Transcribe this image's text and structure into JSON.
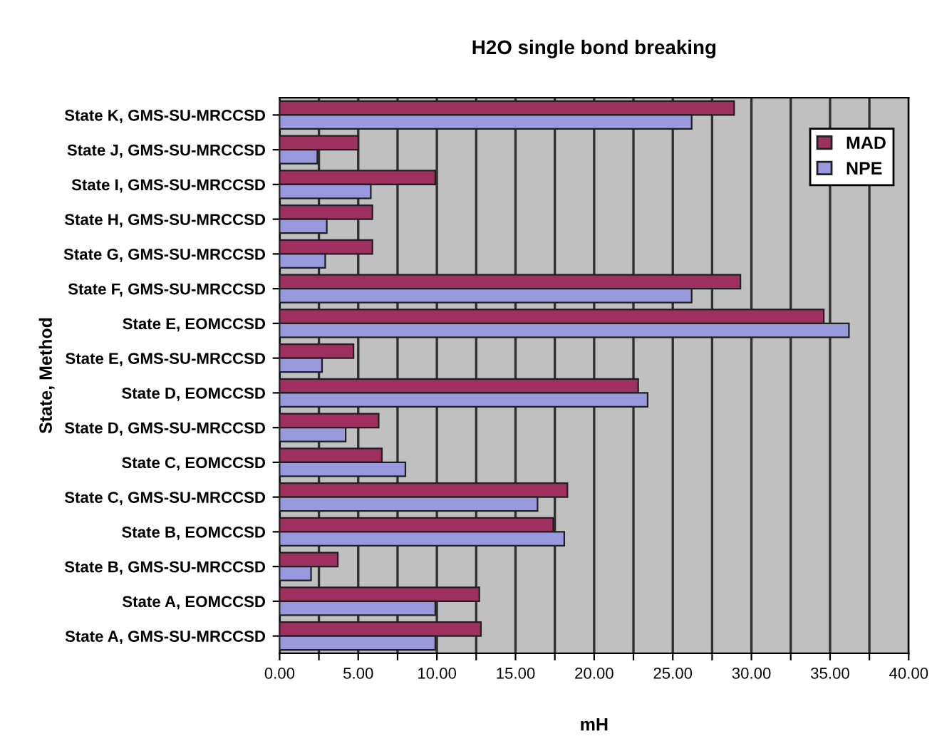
{
  "chart_data": {
    "type": "bar",
    "orientation": "horizontal",
    "title": "H2O single bond breaking",
    "xlabel": "mH",
    "ylabel": "State, Method",
    "categories": [
      "State K, GMS-SU-MRCCSD",
      "State J, GMS-SU-MRCCSD",
      "State I, GMS-SU-MRCCSD",
      "State H, GMS-SU-MRCCSD",
      "State G, GMS-SU-MRCCSD",
      "State F, GMS-SU-MRCCSD",
      "State E, EOMCCSD",
      "State E, GMS-SU-MRCCSD",
      "State D, EOMCCSD",
      "State D, GMS-SU-MRCCSD",
      "State C, EOMCCSD",
      "State C, GMS-SU-MRCCSD",
      "State B, EOMCCSD",
      "State B, GMS-SU-MRCCSD",
      "State A, EOMCCSD",
      "State A, GMS-SU-MRCCSD"
    ],
    "series": [
      {
        "name": "MAD",
        "color": "#9e3060",
        "values": [
          28.9,
          5.0,
          9.9,
          5.9,
          5.9,
          29.3,
          34.6,
          4.7,
          22.8,
          6.3,
          6.5,
          18.3,
          17.4,
          3.7,
          12.7,
          12.8
        ]
      },
      {
        "name": "NPE",
        "color": "#9999dd",
        "values": [
          26.2,
          2.4,
          5.8,
          3.0,
          2.9,
          26.2,
          36.2,
          2.7,
          23.4,
          4.2,
          8.0,
          16.4,
          18.1,
          2.0,
          9.9,
          9.9
        ]
      }
    ],
    "xlim": [
      0,
      40
    ],
    "xticks": [
      "0.00",
      {
        "value": 2.5,
        "label": null
      },
      {
        "value": 5,
        "label": "5.00"
      },
      {
        "value": 7.5,
        "label": null
      },
      {
        "value": 10,
        "label": "10.00"
      },
      {
        "value": 12.5,
        "label": null
      },
      {
        "value": 15,
        "label": "15.00"
      },
      {
        "value": 17.5,
        "label": null
      },
      {
        "value": 20,
        "label": "20.00"
      },
      {
        "value": 22.5,
        "label": null
      },
      {
        "value": 25,
        "label": "25.00"
      },
      {
        "value": 27.5,
        "label": null
      },
      {
        "value": 30,
        "label": "30.00"
      },
      {
        "value": 32.5,
        "label": null
      },
      {
        "value": 35,
        "label": "35.00"
      },
      {
        "value": 37.5,
        "label": null
      },
      {
        "value": 40,
        "label": "40.00"
      }
    ],
    "grid": "x",
    "legend": "top right"
  }
}
